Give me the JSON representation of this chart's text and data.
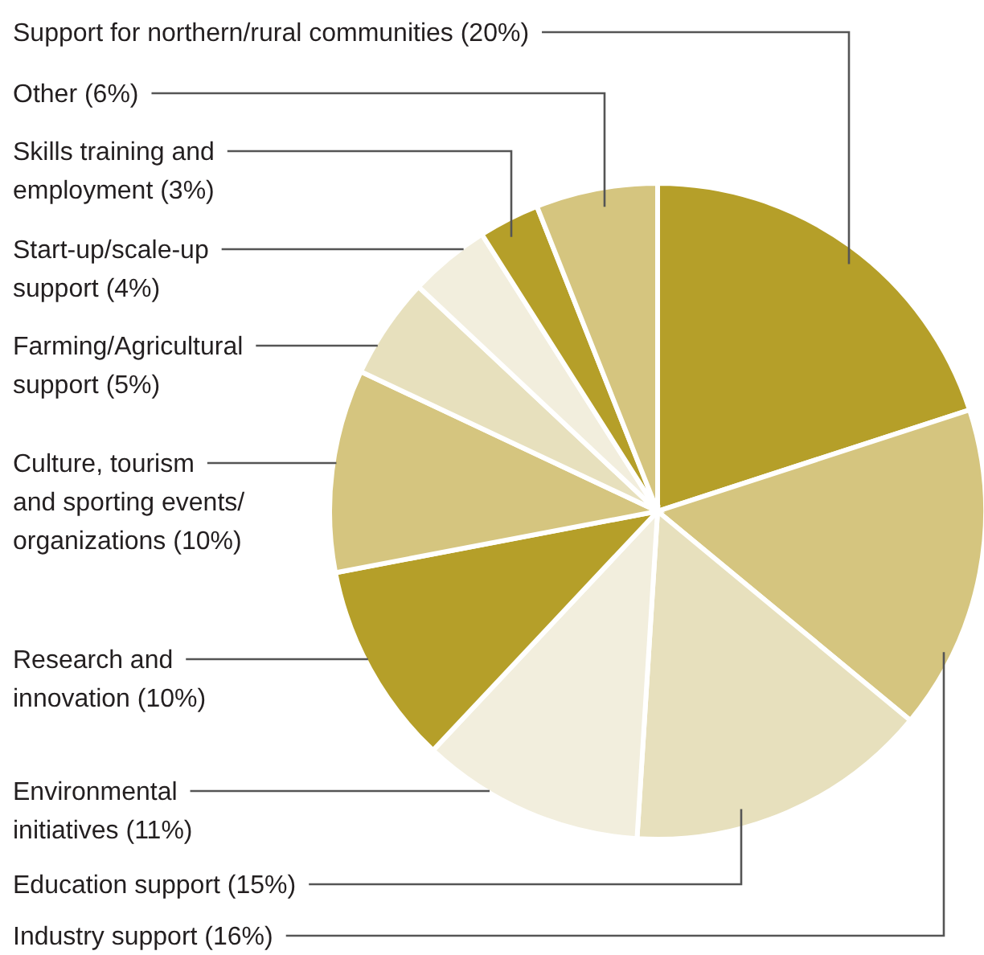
{
  "chart_data": {
    "type": "pie",
    "categories": [
      "Support for northern/rural communities",
      "Industry support",
      "Education support",
      "Environmental initiatives",
      "Research and innovation",
      "Culture, tourism and sporting events/organizations",
      "Farming/Agricultural support",
      "Start-up/scale-up support",
      "Skills training and employment",
      "Other"
    ],
    "values": [
      20,
      16,
      15,
      11,
      10,
      10,
      5,
      4,
      3,
      6
    ],
    "colors": [
      "#b59f29",
      "#d5c57f",
      "#e7e0bd",
      "#f2eedd",
      "#b59f29",
      "#d5c57f",
      "#e7e0bd",
      "#f2eedd",
      "#b59f29",
      "#d5c57f"
    ],
    "value_labels": [
      "(20%)",
      "(16%)",
      "(15%)",
      "(11%)",
      "(10%)",
      "(10%)",
      "(5%)",
      "(4%)",
      "(3%)",
      "(6%)"
    ]
  }
}
